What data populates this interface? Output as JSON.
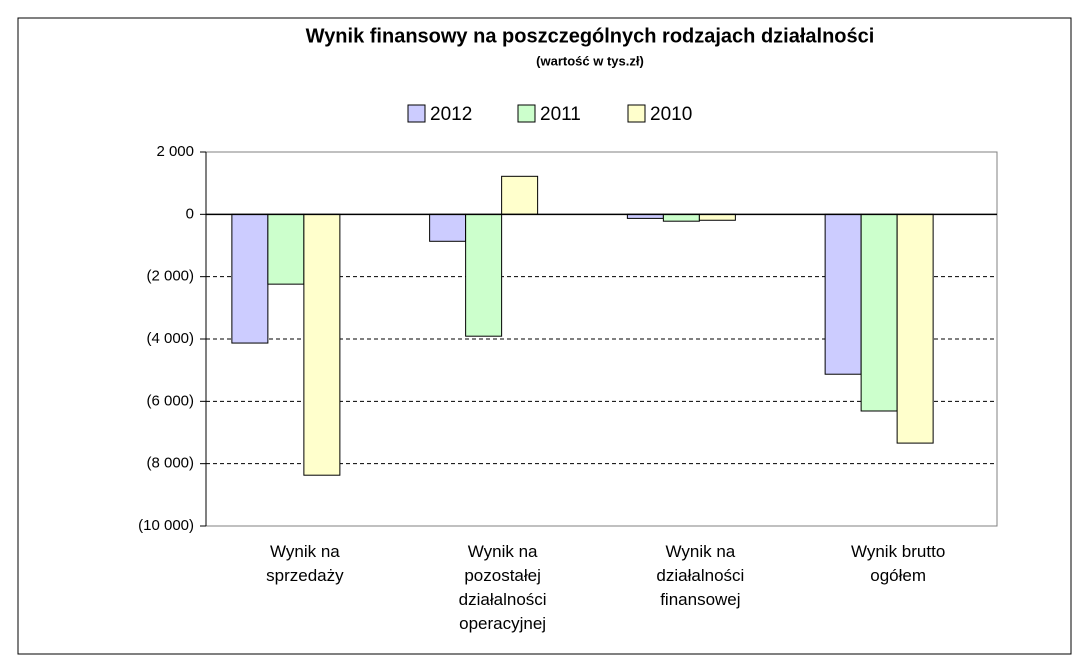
{
  "chart_data": {
    "type": "bar",
    "title": "Wynik finansowy na poszczególnych rodzajach działalności",
    "subtitle": "(wartość w tys.zł)",
    "categories": [
      "Wynik na\nsprzedaży",
      "Wynik na\npozostałej\ndziałalności\noperacyjnej",
      "Wynik na\ndziałalności\nfinansowej",
      "Wynik brutto\nogółem"
    ],
    "series": [
      {
        "name": "2012",
        "color": "#ccccff",
        "values": [
          -4130,
          -865,
          -130,
          -5130
        ]
      },
      {
        "name": "2011",
        "color": "#ccffcc",
        "values": [
          -2240,
          -3910,
          -220,
          -6310
        ]
      },
      {
        "name": "2010",
        "color": "#ffffcc",
        "values": [
          -8370,
          1220,
          -190,
          -7340
        ]
      }
    ],
    "ylim": [
      -10000,
      2000
    ],
    "yticks": [
      {
        "value": -10000,
        "label": "(10 000)"
      },
      {
        "value": -8000,
        "label": "(8 000)"
      },
      {
        "value": -6000,
        "label": "(6 000)"
      },
      {
        "value": -4000,
        "label": "(4 000)"
      },
      {
        "value": -2000,
        "label": "(2 000)"
      },
      0,
      {
        "value": 2000,
        "label": "2 000"
      }
    ],
    "grid": true,
    "legend": "top"
  }
}
